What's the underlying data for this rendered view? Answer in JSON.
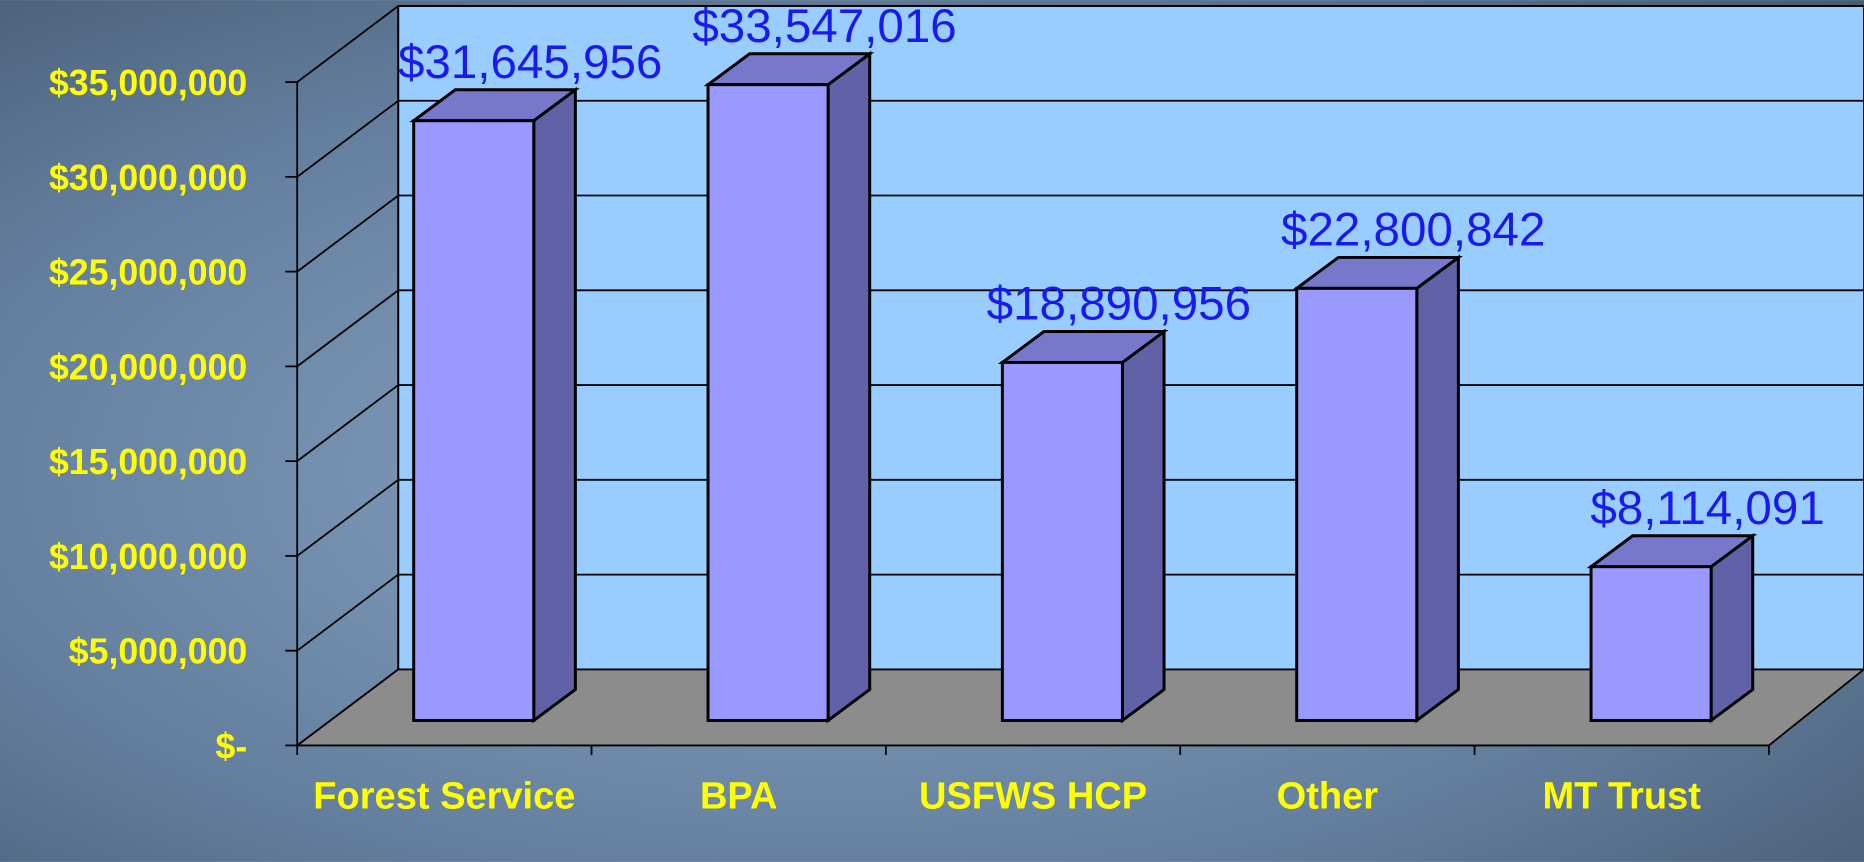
{
  "chart_data": {
    "type": "bar3d",
    "categories": [
      "Forest Service",
      "BPA",
      "USFWS HCP",
      "Other",
      "MT Trust"
    ],
    "values": [
      31645956,
      33547016,
      18890956,
      22800842,
      8114091
    ],
    "value_labels": [
      "$31,645,956",
      "$33,547,016",
      "$18,890,956",
      "$22,800,842",
      "$8,114,091"
    ],
    "color": "#9999ff",
    "ylim": [
      0,
      35000000
    ],
    "yticks": [
      {
        "value": 0,
        "label": "$-"
      },
      {
        "value": 5000000,
        "label": "$5,000,000"
      },
      {
        "value": 10000000,
        "label": "$10,000,000"
      },
      {
        "value": 15000000,
        "label": "$15,000,000"
      },
      {
        "value": 20000000,
        "label": "$20,000,000"
      },
      {
        "value": 25000000,
        "label": "$25,000,000"
      },
      {
        "value": 30000000,
        "label": "$30,000,000"
      },
      {
        "value": 35000000,
        "label": "$35,000,000"
      }
    ],
    "grid": true
  }
}
